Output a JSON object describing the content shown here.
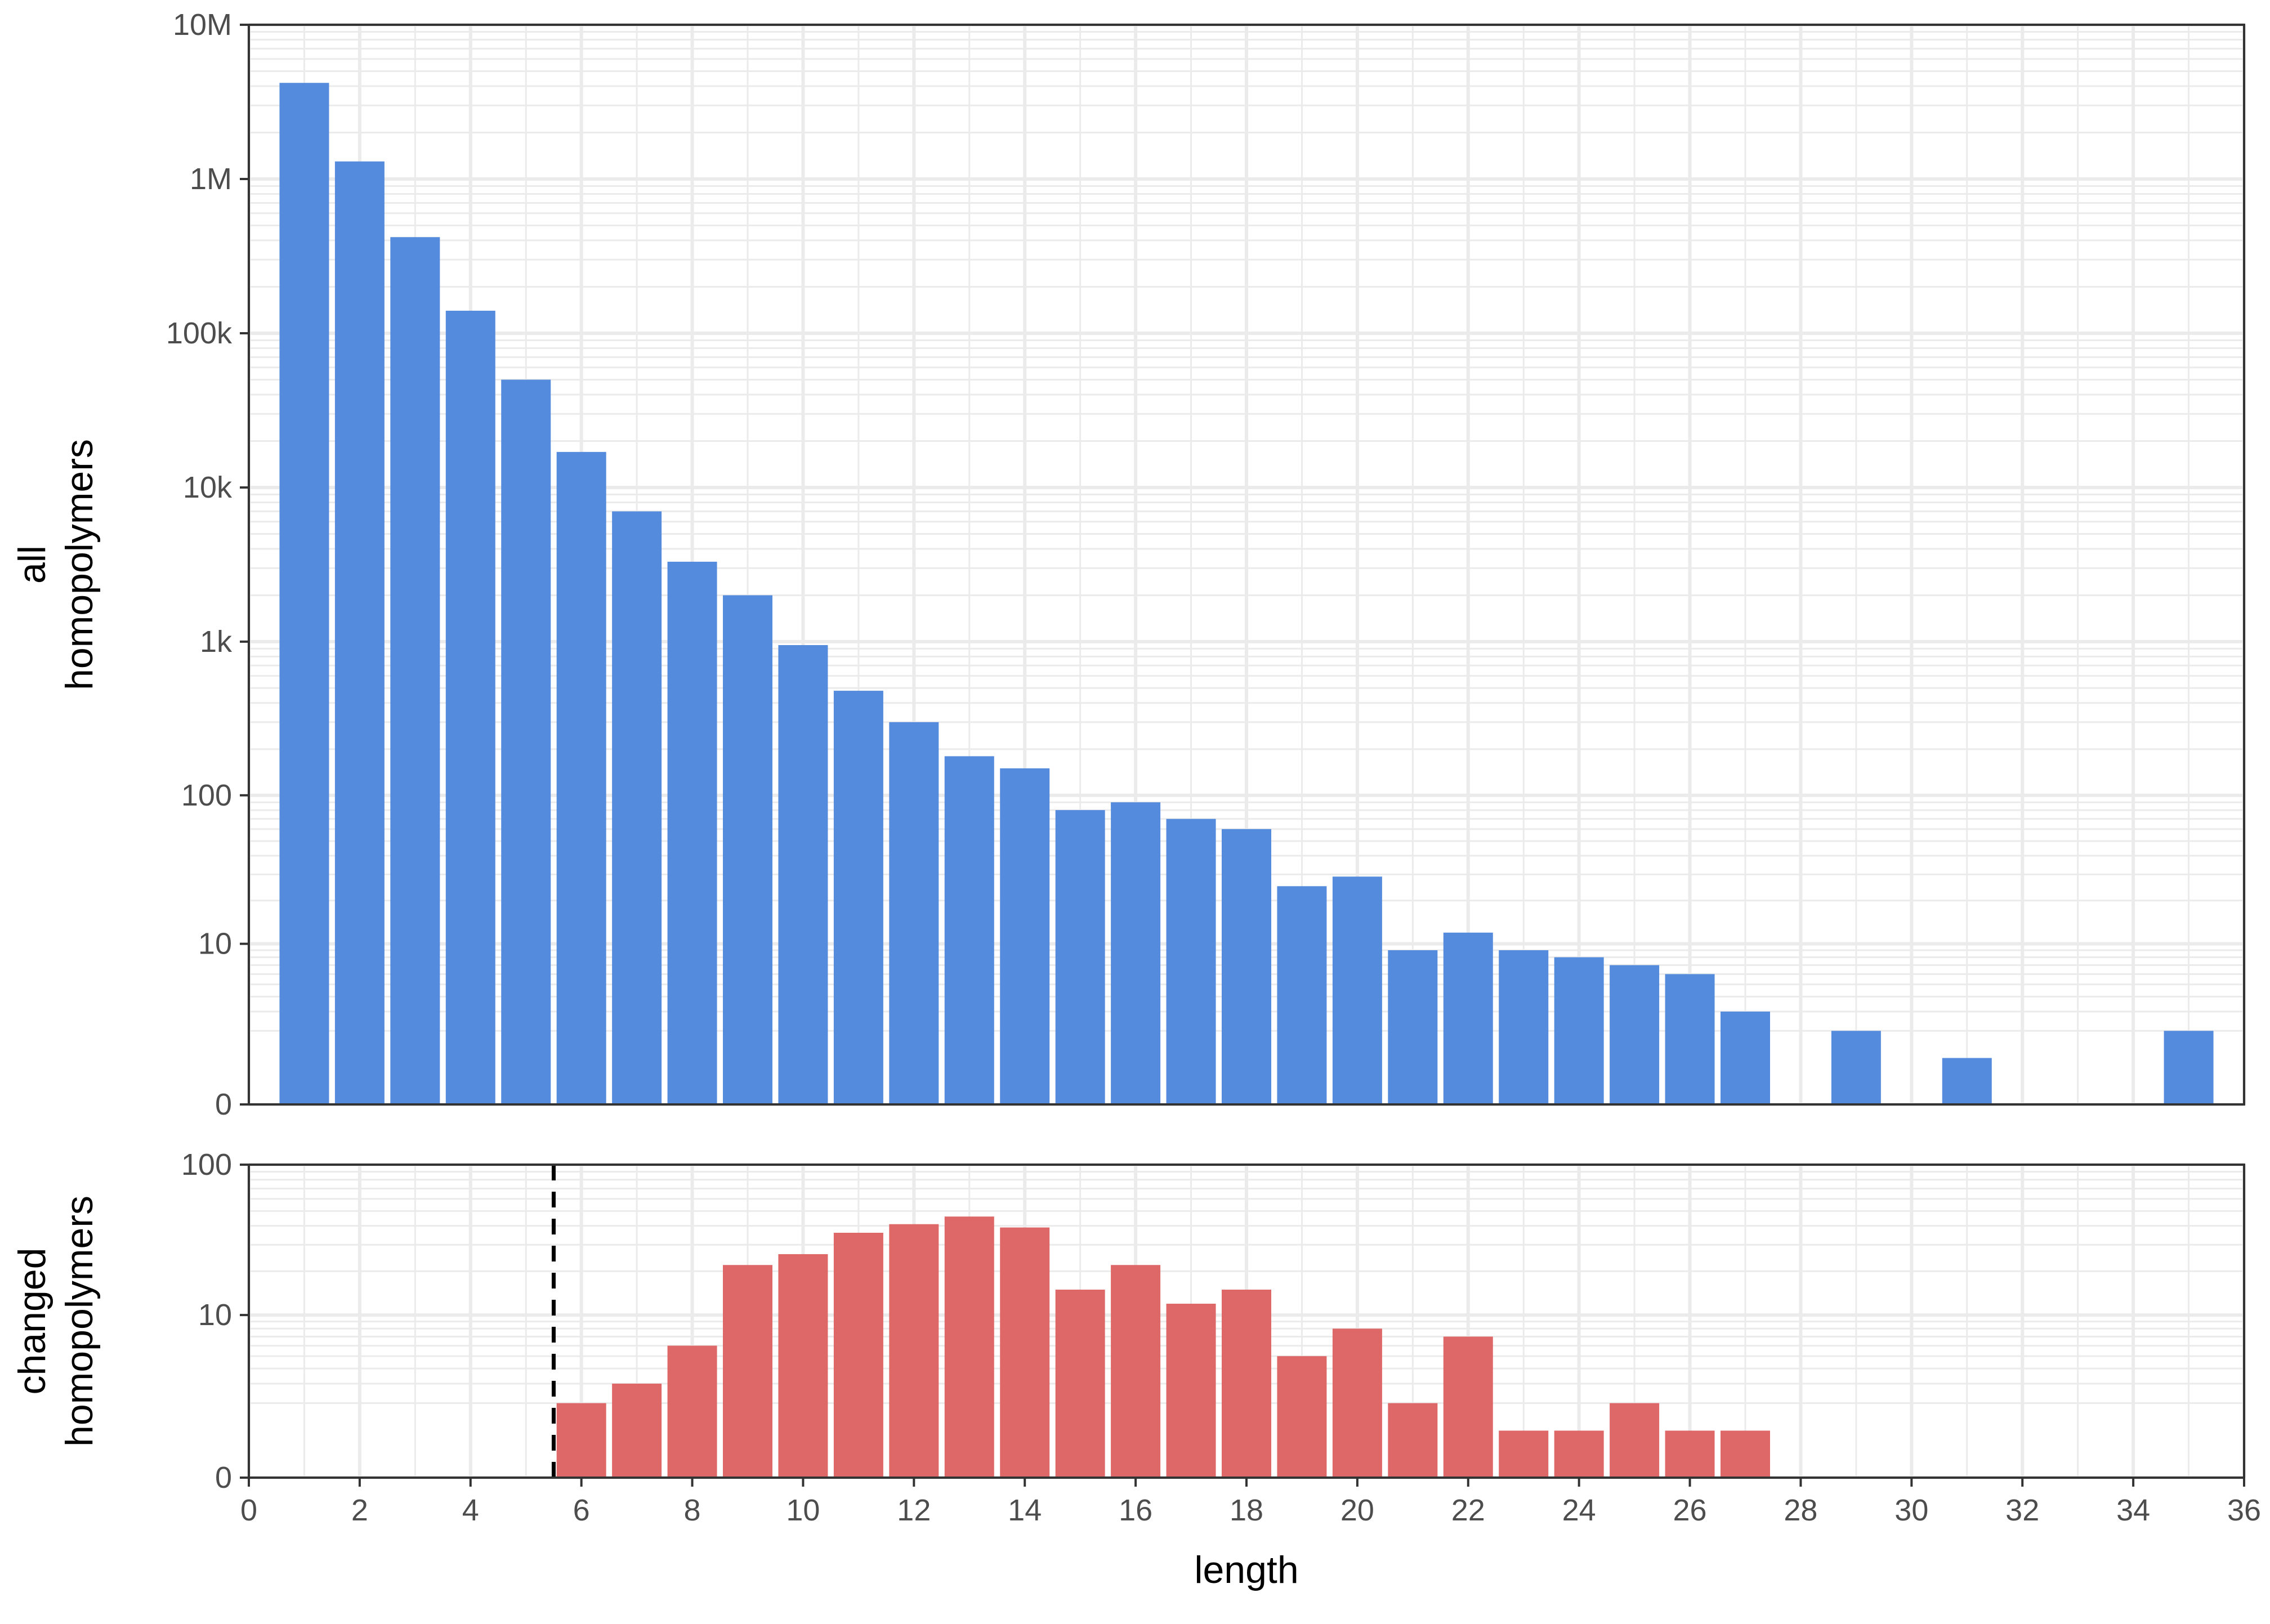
{
  "chart_data": [
    {
      "type": "bar",
      "ylabel": "all\nhomopolymers",
      "yscale": "log(y+1)",
      "y_ticks": [
        {
          "value": 0,
          "label": "0"
        },
        {
          "value": 10,
          "label": "10"
        },
        {
          "value": 100,
          "label": "100"
        },
        {
          "value": 1000,
          "label": "1k"
        },
        {
          "value": 10000,
          "label": "10k"
        },
        {
          "value": 100000,
          "label": "100k"
        },
        {
          "value": 1000000,
          "label": "1M"
        },
        {
          "value": 10000000,
          "label": "10M"
        }
      ],
      "ylim": [
        0,
        10000000
      ],
      "xlim": [
        0,
        36
      ],
      "bar_color": "#558bdc",
      "x": [
        1,
        2,
        3,
        4,
        5,
        6,
        7,
        8,
        9,
        10,
        11,
        12,
        13,
        14,
        15,
        16,
        17,
        18,
        19,
        20,
        21,
        22,
        23,
        24,
        25,
        26,
        27,
        29,
        31,
        35
      ],
      "values": [
        4200000,
        1300000,
        420000,
        140000,
        50000,
        17000,
        7000,
        3300,
        2000,
        950,
        480,
        300,
        180,
        150,
        80,
        90,
        70,
        60,
        25,
        29,
        9,
        12,
        9,
        8,
        7,
        6,
        3,
        2,
        1,
        2
      ]
    },
    {
      "type": "bar",
      "ylabel": "changed\nhomopolymers",
      "xlabel": "length",
      "yscale": "log(y+1)",
      "y_ticks": [
        {
          "value": 0,
          "label": "0"
        },
        {
          "value": 10,
          "label": "10"
        },
        {
          "value": 100,
          "label": "100"
        }
      ],
      "ylim": [
        0,
        100
      ],
      "xlim": [
        0,
        36
      ],
      "x_ticks": [
        0,
        2,
        4,
        6,
        8,
        10,
        12,
        14,
        16,
        18,
        20,
        22,
        24,
        26,
        28,
        30,
        32,
        34,
        36
      ],
      "bar_color": "#de6868",
      "threshold": {
        "x": 5.5,
        "style": "dashed"
      },
      "x": [
        6,
        7,
        8,
        9,
        10,
        11,
        12,
        13,
        14,
        15,
        16,
        17,
        18,
        19,
        20,
        21,
        22,
        23,
        24,
        25,
        26,
        27
      ],
      "values": [
        2,
        3,
        6,
        22,
        26,
        36,
        41,
        46,
        39,
        15,
        22,
        12,
        15,
        5,
        8,
        2,
        7,
        1,
        1,
        2,
        1,
        1
      ]
    }
  ]
}
